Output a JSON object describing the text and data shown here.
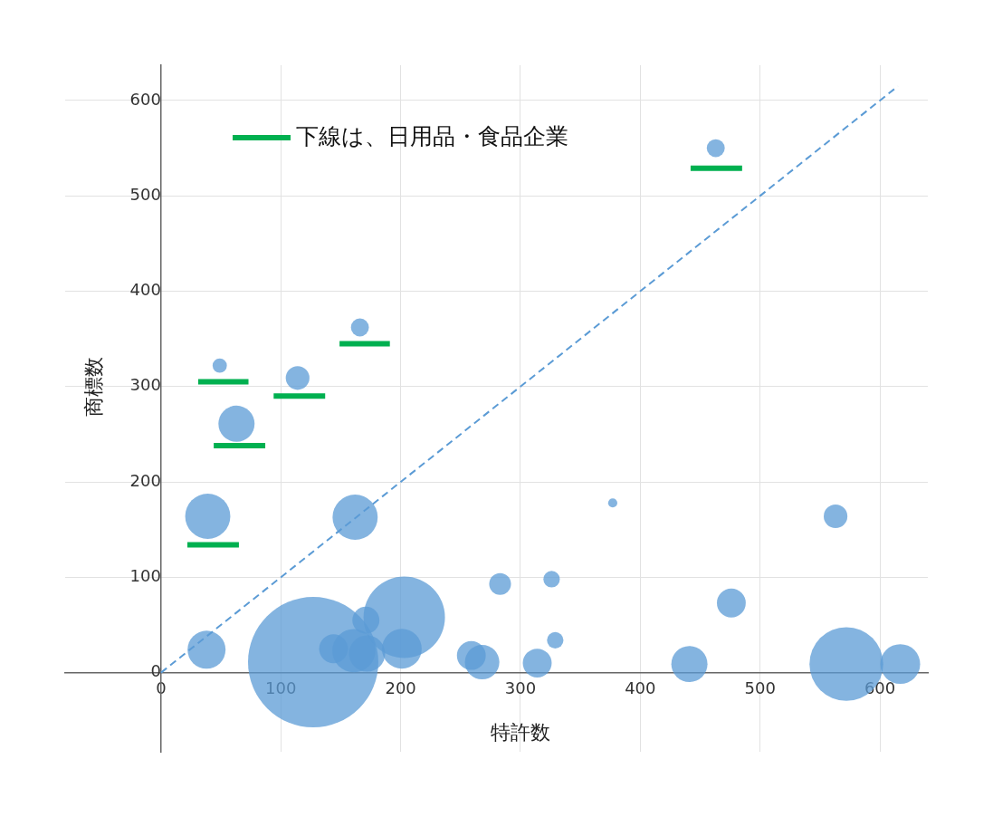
{
  "chart_data": {
    "type": "bubble",
    "xlabel": "特許数",
    "ylabel": "商標数",
    "xlim": [
      -80,
      640
    ],
    "ylim": [
      -83,
      637
    ],
    "xticks": [
      0,
      100,
      200,
      300,
      400,
      500,
      600
    ],
    "yticks": [
      0,
      100,
      200,
      300,
      400,
      500,
      600
    ],
    "grid": true,
    "legend": "top left",
    "series": [
      {
        "color": "#5b9bd5",
        "x": [
          49,
          63,
          114,
          166,
          463,
          39,
          162,
          38,
          127,
          144,
          161,
          172,
          171,
          203,
          201,
          259,
          268,
          283,
          326,
          329,
          314,
          377,
          441,
          476,
          563,
          572,
          617
        ],
        "values": [
          322,
          261,
          309,
          362,
          550,
          164,
          163,
          24,
          11,
          25,
          23,
          20,
          55,
          58,
          25,
          18,
          11,
          93,
          98,
          34,
          10,
          178,
          9,
          73,
          164,
          9,
          9
        ],
        "sizes": [
          0.012,
          0.077,
          0.033,
          0.019,
          0.019,
          0.12,
          0.12,
          0.085,
          1,
          0.049,
          0.11,
          0.077,
          0.043,
          0.39,
          0.093,
          0.049,
          0.07,
          0.028,
          0.016,
          0.016,
          0.049,
          0.005,
          0.077,
          0.049,
          0.033,
          0.32,
          0.093
        ]
      },
      {
        "type": "line",
        "name": "下線は、日用品・食品企業",
        "color": "#00b050",
        "marker": "none",
        "line_style": "solid",
        "x": [
          31,
          73,
          null,
          44,
          87,
          null,
          94,
          137,
          null,
          149,
          191,
          null,
          442,
          485,
          null,
          22,
          65
        ],
        "values": [
          305,
          305,
          null,
          238,
          238,
          null,
          290,
          290,
          null,
          345,
          345,
          null,
          529,
          529,
          null,
          134,
          134
        ]
      },
      {
        "type": "line",
        "color": "#5b9bd5",
        "marker": "none",
        "line_style": "dashed",
        "x": [
          0,
          615
        ],
        "values": [
          0,
          615
        ]
      }
    ]
  }
}
